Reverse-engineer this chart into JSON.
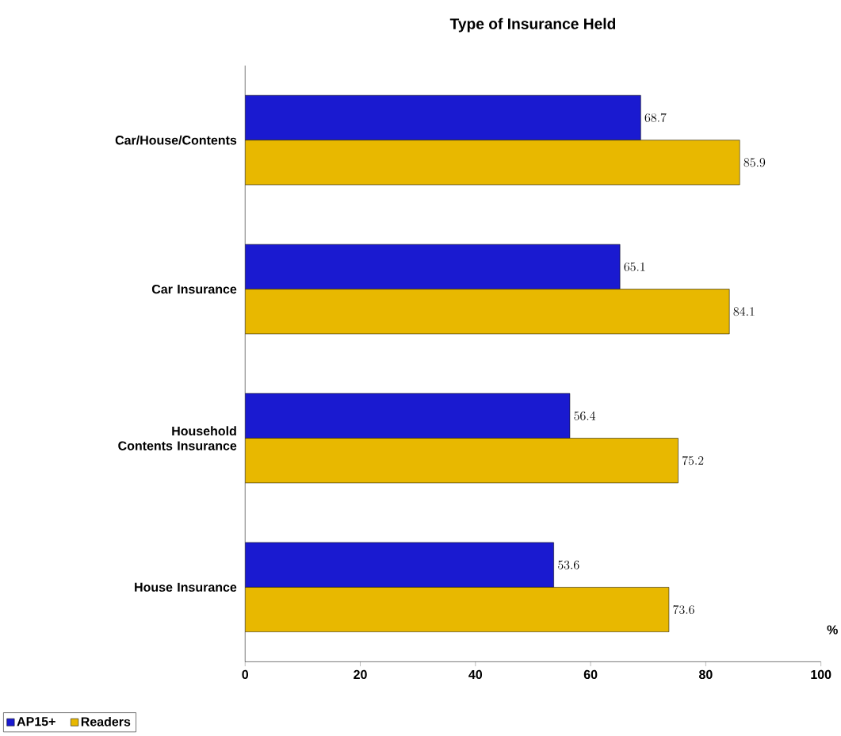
{
  "chart_data": {
    "type": "bar",
    "orientation": "horizontal",
    "title": "Type of Insurance Held",
    "xlabel": "%",
    "categories": [
      "Car/House/Contents",
      "Car Insurance",
      "Household Contents Insurance",
      "House Insurance"
    ],
    "series": [
      {
        "name": "AP15+",
        "color": "#1a1ad0",
        "values": [
          68.7,
          65.1,
          56.4,
          53.6
        ]
      },
      {
        "name": "Readers",
        "color": "#e8b800",
        "values": [
          85.9,
          84.1,
          75.2,
          73.6
        ]
      }
    ],
    "xlim": [
      0,
      100
    ],
    "xticks": [
      0,
      20,
      40,
      60,
      80,
      100
    ],
    "data_labels": true,
    "legend": "bottom left",
    "grid": false
  }
}
